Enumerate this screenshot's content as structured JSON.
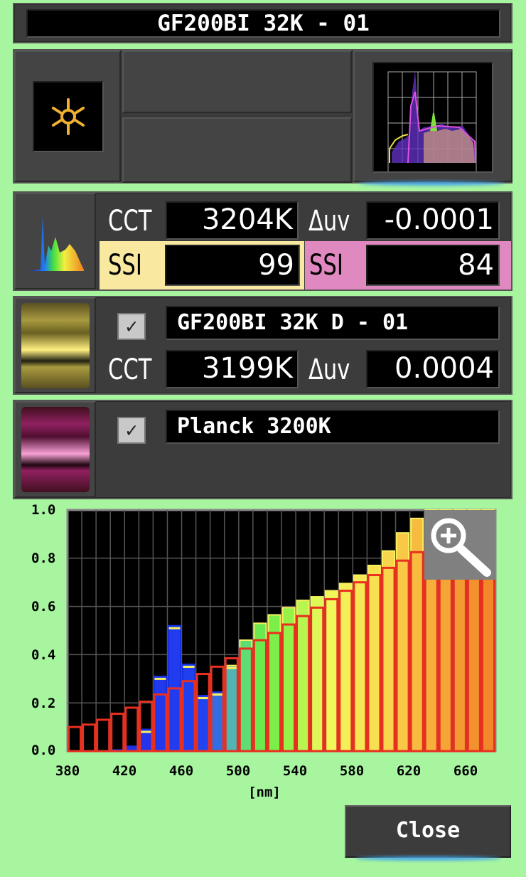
{
  "header": {
    "title": "GF200BI 32K - 01"
  },
  "icons": {
    "light": "sun-icon",
    "spectrum_thumb": "spectrum-thumbnail-icon",
    "zoom": "magnifier-plus-icon",
    "check": "checkmark-icon"
  },
  "measurement": {
    "cct_label": "CCT",
    "cct_value": "3204K",
    "duv_label": "Δuv",
    "duv_value": "-0.0001",
    "ssi_label_1": "SSI",
    "ssi_value_1": "99",
    "ssi_label_2": "SSI",
    "ssi_value_2": "84"
  },
  "reference_1": {
    "checked": true,
    "name": "GF200BI 32K D - 01",
    "cct_label": "CCT",
    "cct_value": "3199K",
    "duv_label": "Δuv",
    "duv_value": "0.0004",
    "color": "#f5e070"
  },
  "reference_2": {
    "checked": true,
    "name": "Planck 3200K",
    "color": "#e070b0"
  },
  "chart_data": {
    "type": "bar",
    "xlabel": "[nm]",
    "xlim": [
      380,
      680
    ],
    "ylim": [
      0,
      1.0
    ],
    "x_ticks": [
      "380",
      "420",
      "460",
      "500",
      "540",
      "580",
      "620",
      "660"
    ],
    "y_ticks": [
      "0.0",
      "0.2",
      "0.4",
      "0.6",
      "0.8",
      "1.0"
    ],
    "grid": true,
    "bin_width_nm": 10,
    "bins": [
      380,
      390,
      400,
      410,
      420,
      430,
      440,
      450,
      460,
      470,
      480,
      490,
      500,
      510,
      520,
      530,
      540,
      550,
      560,
      570,
      580,
      590,
      600,
      610,
      620,
      630,
      640,
      650,
      660,
      670
    ],
    "series": [
      {
        "values": [
          0,
          0,
          0,
          0.005,
          0.02,
          0.09,
          0.31,
          0.52,
          0.36,
          0.23,
          0.245,
          0.355,
          0.46,
          0.53,
          0.565,
          0.595,
          0.625,
          0.64,
          0.665,
          0.695,
          0.73,
          0.77,
          0.83,
          0.905,
          0.965,
          1.0,
          1.0,
          1.0,
          1.0,
          1.0
        ],
        "outline": "#f8f060"
      },
      {
        "values": [
          0.1,
          0.11,
          0.13,
          0.155,
          0.18,
          0.205,
          0.235,
          0.26,
          0.29,
          0.32,
          0.35,
          0.385,
          0.425,
          0.46,
          0.49,
          0.525,
          0.56,
          0.595,
          0.63,
          0.665,
          0.7,
          0.73,
          0.76,
          0.79,
          0.825,
          0.86,
          0.89,
          0.92,
          0.95,
          0.98
        ],
        "outline": "#e83020"
      }
    ]
  },
  "footer": {
    "close_label": "Close"
  }
}
